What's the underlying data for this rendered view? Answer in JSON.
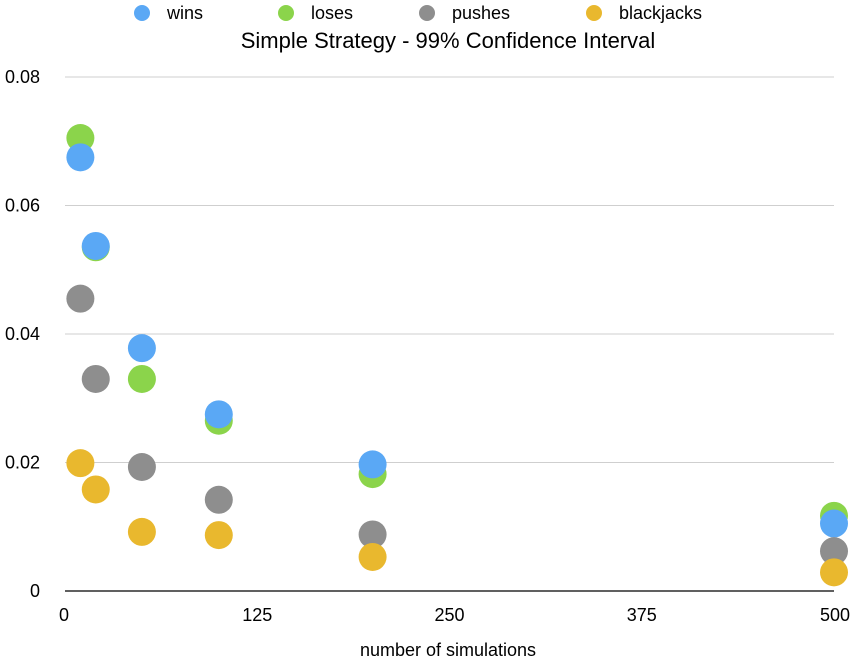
{
  "chart_data": {
    "type": "scatter",
    "title": "Simple Strategy - 99% Confidence Interval",
    "xlabel": "number of simulations",
    "ylabel": "",
    "xlim": [
      0,
      500
    ],
    "ylim": [
      0,
      0.08
    ],
    "x_ticks": [
      0,
      125,
      250,
      375,
      500
    ],
    "y_ticks": [
      0,
      0.02,
      0.04,
      0.06,
      0.08
    ],
    "x_tick_labels": [
      "0",
      "125",
      "250",
      "375",
      "500"
    ],
    "y_tick_labels": [
      "0",
      "0.02",
      "0.04",
      "0.06",
      "0.08"
    ],
    "grid": "horizontal",
    "legend_position": "top",
    "x": [
      10,
      20,
      50,
      100,
      200,
      500
    ],
    "series": [
      {
        "name": "wins",
        "color": "#5aa8f5",
        "values": [
          0.0675,
          0.0537,
          0.0378,
          0.0275,
          0.0197,
          0.0105
        ]
      },
      {
        "name": "loses",
        "color": "#8bd44b",
        "values": [
          0.0705,
          0.0535,
          0.033,
          0.0265,
          0.0182,
          0.0117
        ]
      },
      {
        "name": "pushes",
        "color": "#8e8e8e",
        "values": [
          0.0455,
          0.033,
          0.0193,
          0.0142,
          0.0088,
          0.0062
        ]
      },
      {
        "name": "blackjacks",
        "color": "#e9b82e",
        "values": [
          0.0199,
          0.0158,
          0.0092,
          0.0087,
          0.0053,
          0.0029
        ]
      }
    ]
  }
}
